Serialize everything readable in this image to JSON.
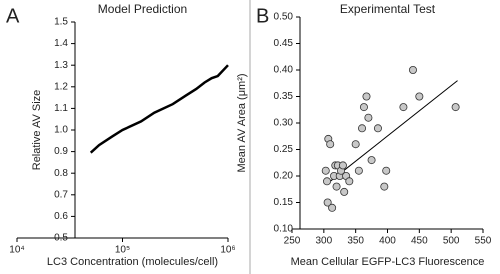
{
  "chart_data": [
    {
      "type": "line",
      "panel": "A",
      "title": "Model Prediction",
      "xlabel": "LC3 Concentration (molecules/cell)",
      "ylabel": "Relative AV Size",
      "xscale": "log",
      "xlim": [
        10000,
        1000000
      ],
      "xticks": [
        {
          "value": 10000,
          "label": "10⁴"
        },
        {
          "value": 100000,
          "label": "10⁵"
        },
        {
          "value": 1000000,
          "label": "10⁶"
        }
      ],
      "ylim": [
        0.5,
        1.5
      ],
      "yticks": [
        0.5,
        0.6,
        0.7,
        0.8,
        0.9,
        {
          "value": 1,
          "label": "1.0"
        },
        1.1,
        1.2,
        1.3,
        1.4,
        1.5
      ],
      "x": [
        50000,
        60000,
        80000,
        100000,
        150000,
        200000,
        300000,
        400000,
        500000,
        600000,
        700000,
        800000,
        1000000
      ],
      "values": [
        0.895,
        0.93,
        0.97,
        1.0,
        1.04,
        1.08,
        1.12,
        1.16,
        1.19,
        1.22,
        1.24,
        1.25,
        1.3
      ],
      "color": "#000000"
    },
    {
      "type": "scatter",
      "panel": "B",
      "title": "Experimental Test",
      "xlabel": "Mean Cellular EGFP-LC3 Fluorescence",
      "ylabel": "Mean AV Area (μm²)",
      "xlim": [
        250,
        550
      ],
      "xticks": [
        250,
        300,
        350,
        400,
        450,
        500,
        550
      ],
      "ylim": [
        0.1,
        0.5
      ],
      "yticks": [
        {
          "value": 0.1,
          "label": "0.10"
        },
        {
          "value": 0.15,
          "label": "0.15"
        },
        {
          "value": 0.2,
          "label": "0.20"
        },
        {
          "value": 0.25,
          "label": "0.25"
        },
        {
          "value": 0.3,
          "label": "0.30"
        },
        {
          "value": 0.35,
          "label": "0.35"
        },
        {
          "value": 0.4,
          "label": "0.40"
        },
        {
          "value": 0.45,
          "label": "0.45"
        },
        {
          "value": 0.5,
          "label": "0.50"
        }
      ],
      "x": [
        303,
        305,
        307,
        306,
        310,
        313,
        316,
        318,
        320,
        322,
        325,
        327,
        330,
        332,
        335,
        340,
        350,
        355,
        360,
        363,
        367,
        370,
        375,
        385,
        395,
        398,
        425,
        440,
        450,
        507
      ],
      "values": [
        0.21,
        0.19,
        0.27,
        0.15,
        0.26,
        0.14,
        0.2,
        0.22,
        0.18,
        0.22,
        0.2,
        0.21,
        0.22,
        0.17,
        0.2,
        0.19,
        0.26,
        0.21,
        0.29,
        0.33,
        0.35,
        0.31,
        0.23,
        0.29,
        0.18,
        0.21,
        0.33,
        0.4,
        0.35,
        0.33
      ],
      "color": "#c8c8c8",
      "trendline": {
        "x": [
          310,
          510
        ],
        "y": [
          0.19,
          0.38
        ]
      }
    }
  ]
}
